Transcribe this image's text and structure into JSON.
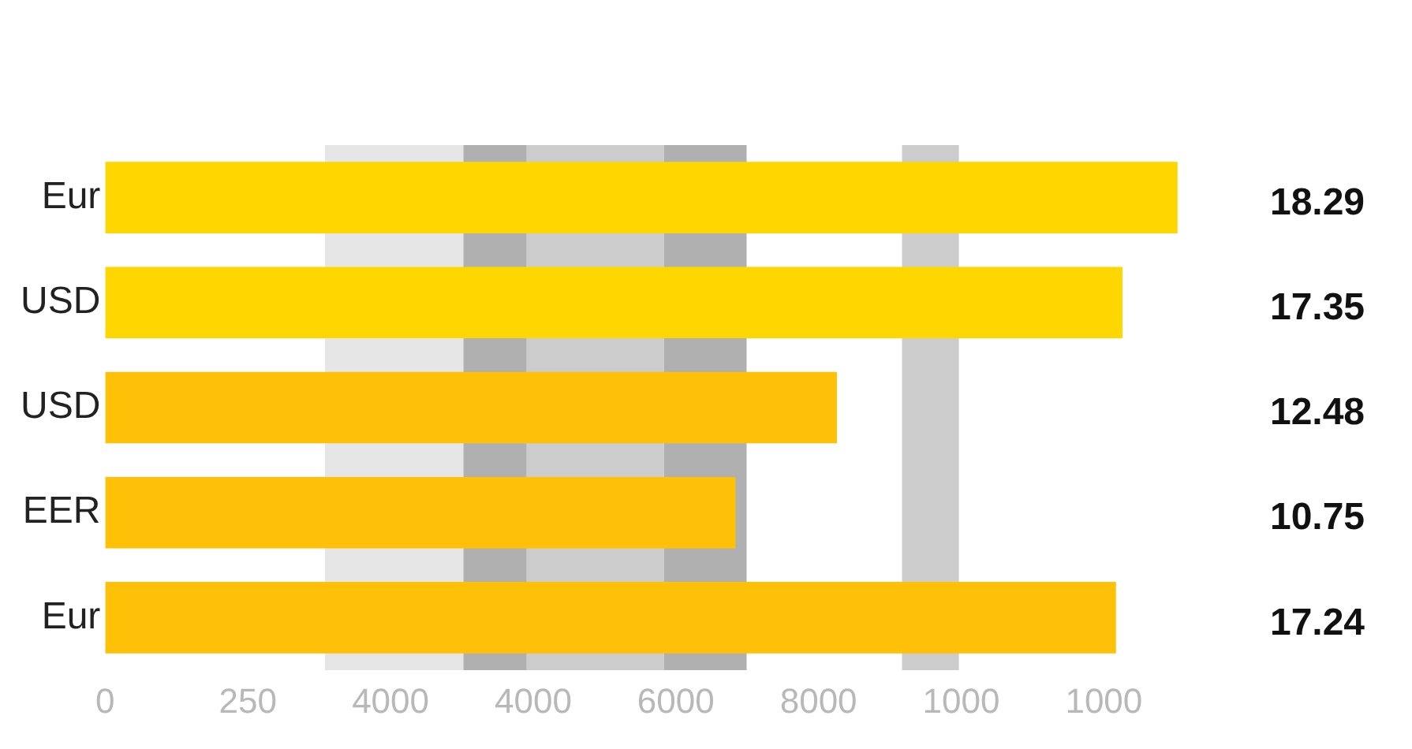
{
  "chart_data": {
    "type": "bar",
    "orientation": "horizontal",
    "categories": [
      "Eur",
      "USD",
      "USD",
      "EER",
      "Eur"
    ],
    "values": [
      18.29,
      17.35,
      12.48,
      10.75,
      17.24
    ],
    "colors": [
      "#ffd700",
      "#ffd700",
      "#ffc107",
      "#ffc107",
      "#ffc107"
    ],
    "data_labels": true,
    "annotations": [
      "0",
      "250",
      "4000",
      "4000",
      "6000",
      "8000",
      "1000",
      "1000"
    ],
    "bands": [
      {
        "axis": "x",
        "from": 3.75,
        "to": 6.11,
        "color": "#e6e6e6"
      },
      {
        "axis": "x",
        "from": 6.11,
        "to": 7.19,
        "color": "#b0b0b0"
      },
      {
        "axis": "x",
        "from": 7.19,
        "to": 9.53,
        "color": "#cccccc"
      },
      {
        "axis": "x",
        "from": 9.53,
        "to": 10.94,
        "color": "#b0b0b0"
      },
      {
        "axis": "x",
        "from": 13.59,
        "to": 14.56,
        "color": "#cccccc"
      }
    ]
  }
}
